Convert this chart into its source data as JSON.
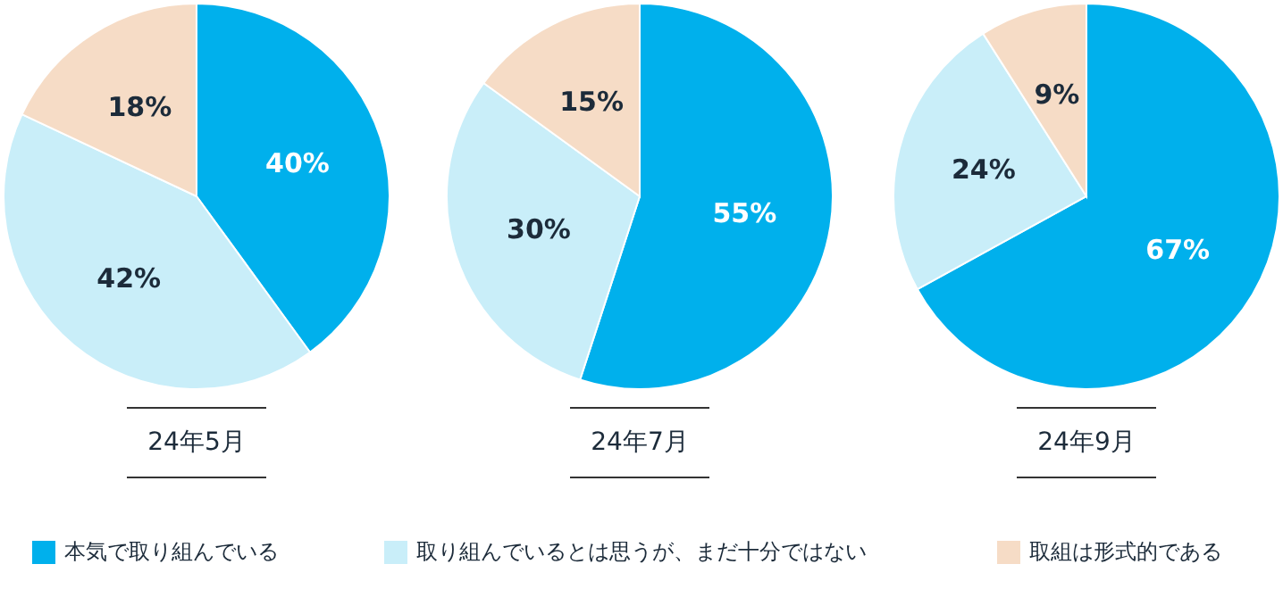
{
  "chart_data": [
    {
      "type": "pie",
      "title": "24年5月",
      "categories": [
        "本気で取り組んでいる",
        "取り組んでいるとは思うが、まだ十分ではない",
        "取組は形式的である"
      ],
      "values": [
        40,
        42,
        18
      ],
      "value_labels": [
        "40%",
        "42%",
        "18%"
      ],
      "colors": [
        "#00b0ec",
        "#c9eef9",
        "#f6dcc6"
      ],
      "legend": "bottom"
    },
    {
      "type": "pie",
      "title": "24年7月",
      "categories": [
        null,
        null,
        null
      ],
      "values": [
        55,
        30,
        15
      ],
      "value_labels": [
        "55%",
        "30%",
        "15%"
      ],
      "colors": [
        "#00b0ec",
        "#c9eef9",
        "#f6dcc6"
      ]
    },
    {
      "type": "pie",
      "title": "24年9月",
      "categories": [
        null,
        null,
        null
      ],
      "values": [
        67,
        24,
        9
      ],
      "value_labels": [
        "67%",
        "24%",
        "9%"
      ],
      "colors": [
        "#00b0ec",
        "#c9eef9",
        "#f6dcc6"
      ]
    }
  ]
}
